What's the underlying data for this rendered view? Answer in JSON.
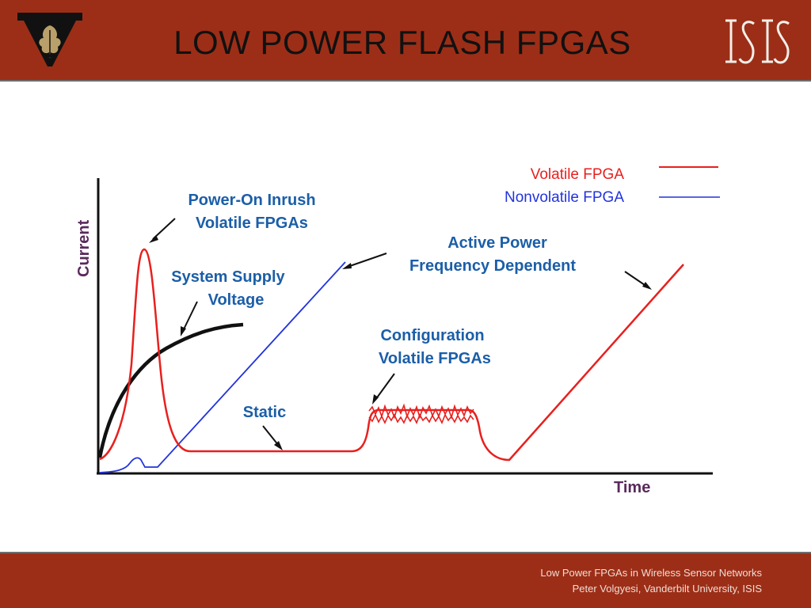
{
  "slide": {
    "title": "LOW POWER FLASH FPGAS"
  },
  "diagram": {
    "axes": {
      "y_label": "Current",
      "x_label": "Time"
    },
    "legend": [
      {
        "label": "Volatile FPGA",
        "color": "#e8201e"
      },
      {
        "label": "Nonvolatile FPGA",
        "color": "#2233dd"
      }
    ],
    "annotations": {
      "inrush": [
        "Power-On Inrush",
        "Volatile FPGAs"
      ],
      "supply": [
        "System Supply",
        "Voltage"
      ],
      "active": [
        "Active Power",
        "Frequency Dependent"
      ],
      "config": [
        "Configuration",
        "Volatile FPGAs"
      ],
      "static": "Static"
    },
    "colors": {
      "annotation": "#1b5ea8",
      "axis_label": "#5a2a5c",
      "supply_curve": "#111111"
    }
  },
  "footer": {
    "line1": "Low Power FPGAs in Wireless Sensor Networks",
    "line2": "Peter Volgyesi, Vanderbilt University, ISIS"
  },
  "theme": {
    "header_bg": "#9c2e17",
    "footer_bg": "#9c2e17"
  }
}
